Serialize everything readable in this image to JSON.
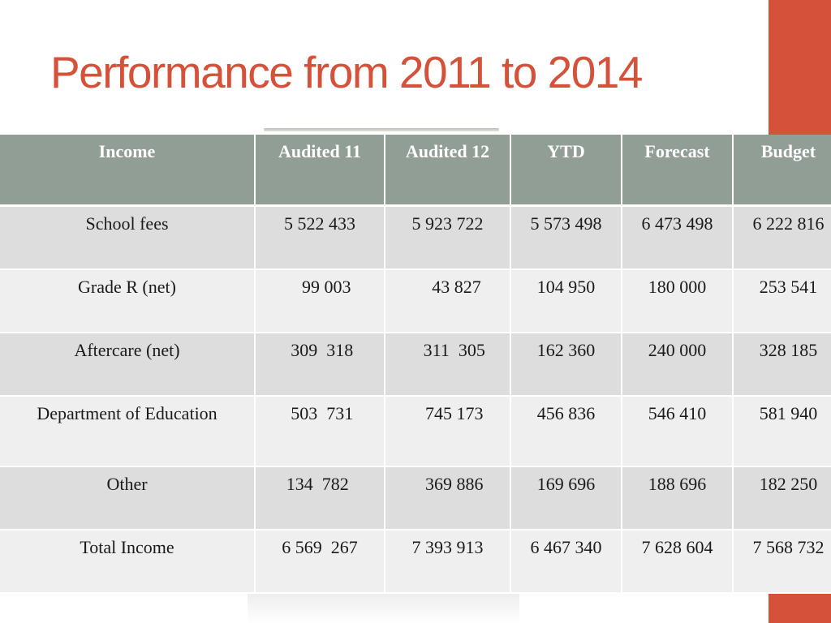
{
  "title": "Performance from 2011 to 2014",
  "colors": {
    "accent": "#d5513a",
    "header_bg": "#919e95",
    "row_dark": "#dcdddc",
    "row_light": "#efefef"
  },
  "table": {
    "headers": [
      "Income",
      "Audited 11",
      "Audited 12",
      "YTD",
      "Forecast",
      "Budget"
    ],
    "rows": [
      [
        "School fees",
        "5 522 433",
        "5 923 722",
        "5 573 498",
        "6 473 498",
        "6 222 816"
      ],
      [
        "Grade R (net)",
        "   99 003",
        "    43 827",
        "104 950",
        "180 000",
        "253 541"
      ],
      [
        "Aftercare  (net)",
        " 309  318",
        "   311  305",
        "162 360",
        "240 000",
        "328 185"
      ],
      [
        "Department  of Education",
        " 503  731",
        "   745 173",
        "456 836",
        "546 410",
        "581 940"
      ],
      [
        "Other",
        "134  782 ",
        "   369 886",
        "169 696",
        "188 696",
        "182 250"
      ],
      [
        "Total  Income",
        "6 569  267",
        "7 393 913",
        "6 467 340",
        "7 628 604",
        "7 568 732"
      ]
    ]
  }
}
